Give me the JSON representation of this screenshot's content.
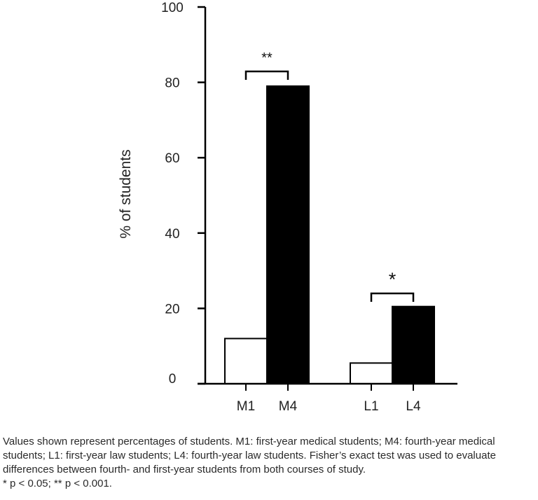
{
  "chart_data": {
    "type": "bar",
    "categories": [
      "M1",
      "M4",
      "L1",
      "L4"
    ],
    "values": [
      12,
      79,
      5.5,
      20.5
    ],
    "bar_fills": [
      "#ffffff",
      "#000000",
      "#ffffff",
      "#000000"
    ],
    "groups": [
      {
        "categories": [
          "M1",
          "M4"
        ]
      },
      {
        "categories": [
          "L1",
          "L4"
        ]
      }
    ],
    "title": "",
    "xlabel": "",
    "ylabel": "% of students",
    "ylim": [
      0,
      100
    ],
    "yticks": [
      0,
      20,
      40,
      60,
      80,
      100
    ],
    "grid": false,
    "legend": "none",
    "annotations": [
      {
        "between": [
          "M1",
          "M4"
        ],
        "label": "**"
      },
      {
        "between": [
          "L1",
          "L4"
        ],
        "label": "*"
      }
    ]
  },
  "caption": {
    "text": "Values shown represent percentages of students. M1: first-year medical students; M4: fourth-year medical students; L1: first-year law students; L4: fourth-year law students. Fisher’s exact test was used to evaluate differences between fourth- and first-year students from both courses of study.",
    "significance": "* p < 0.05; ** p < 0.001."
  }
}
